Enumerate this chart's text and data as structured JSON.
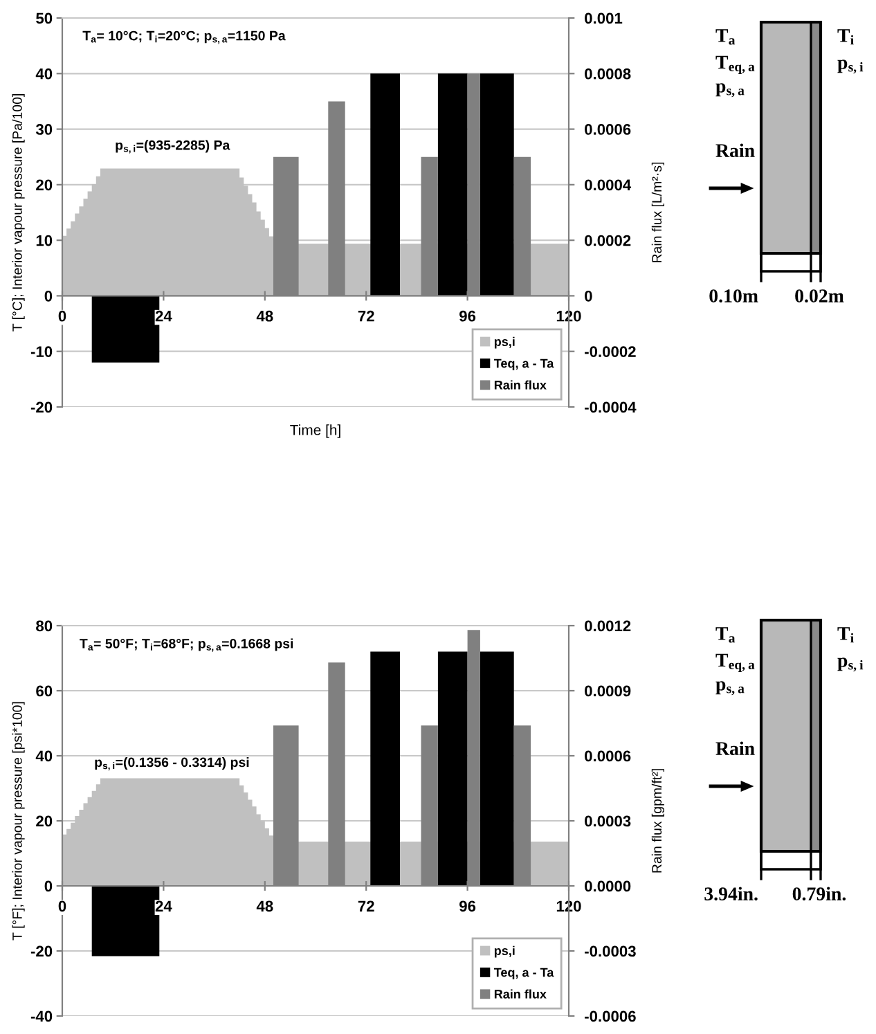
{
  "chart_data": [
    {
      "type": "area",
      "series": [
        {
          "name": "ps,i",
          "color": "#c0c0c0",
          "x": [
            0,
            1,
            1,
            2,
            2,
            3,
            3,
            4,
            4,
            5,
            5,
            6,
            6,
            7,
            7,
            8,
            8,
            9,
            9,
            42,
            42,
            43,
            43,
            44,
            44,
            45,
            45,
            46,
            46,
            47,
            47,
            48,
            48,
            49,
            49,
            50,
            50,
            120
          ],
          "values": [
            10.8,
            10.8,
            12.1,
            12.1,
            13.4,
            13.4,
            14.8,
            14.8,
            16.1,
            16.1,
            17.5,
            17.5,
            18.8,
            18.8,
            20.1,
            20.1,
            21.5,
            21.5,
            22.9,
            22.9,
            21.3,
            21.3,
            19.8,
            19.8,
            18.3,
            18.3,
            16.8,
            16.8,
            15.2,
            15.2,
            13.7,
            13.7,
            12.2,
            12.2,
            10.7,
            10.7,
            9.4,
            9.4
          ]
        },
        {
          "name": "Teq, a - Ta",
          "color": "#000000",
          "x": [
            7,
            7,
            23,
            23,
            73,
            73,
            80,
            80,
            89,
            89,
            96,
            96,
            99,
            99,
            107,
            107
          ],
          "values": [
            0,
            -12,
            -12,
            0,
            0,
            40,
            40,
            0,
            0,
            40,
            40,
            0,
            0,
            40,
            40,
            0
          ]
        },
        {
          "name": "Rain flux",
          "color": "#808080",
          "axis": "y2",
          "x": [
            50,
            50,
            56,
            56,
            63,
            63,
            67,
            67,
            85,
            85,
            89,
            89,
            96,
            96,
            99,
            99,
            107,
            107,
            111,
            111
          ],
          "values": [
            0,
            0.0005,
            0.0005,
            0,
            0,
            0.0007,
            0.0007,
            0,
            0,
            0.0005,
            0.0005,
            0,
            0,
            0.0008,
            0.0008,
            0,
            0,
            0.0005,
            0.0005,
            0
          ]
        }
      ],
      "xlim": [
        0,
        120
      ],
      "xticks": [
        0,
        24,
        48,
        72,
        96,
        120
      ],
      "ylim": [
        -20,
        50
      ],
      "yticks": [
        -20,
        -10,
        0,
        10,
        20,
        30,
        40,
        50
      ],
      "y2lim": [
        -0.0004,
        0.001
      ],
      "y2ticks": [
        -0.0004,
        -0.0002,
        0,
        0.0002,
        0.0004,
        0.0006,
        0.0008,
        0.001
      ],
      "xlabel": "Time [h]",
      "ylabel": "T [°C]; Interior vapour pressure [Pa/100]",
      "y2label": "Rain flux [L/m²·s]",
      "annotations": [
        "T$_{a}$= 10°C; T$_{i}$=20°C; p$_{s,a}$=1150 Pa",
        "p$_{s,i}$=(935-2285) Pa"
      ],
      "grid": "y",
      "legend": "bottom right"
    },
    {
      "type": "other",
      "annotations": [
        "T$_{a}$",
        "T$_{eq,a}$",
        "p$_{s,a}$",
        "Rain",
        "T$_{i}$",
        "p$_{s,i}$",
        "0.10m",
        "0.02m"
      ]
    },
    {
      "type": "area",
      "series": [
        {
          "name": "ps,i",
          "color": "#c0c0c0",
          "x": [
            0,
            1,
            1,
            2,
            2,
            3,
            3,
            4,
            4,
            5,
            5,
            6,
            6,
            7,
            7,
            8,
            8,
            9,
            9,
            42,
            42,
            43,
            43,
            44,
            44,
            45,
            45,
            46,
            46,
            47,
            47,
            48,
            48,
            49,
            49,
            50,
            50,
            120
          ],
          "values": [
            15.8,
            15.8,
            17.5,
            17.5,
            19.4,
            19.4,
            21.5,
            21.5,
            23.4,
            23.4,
            25.4,
            25.4,
            27.3,
            27.3,
            29.2,
            29.2,
            31.2,
            31.2,
            33.1,
            33.1,
            30.9,
            30.9,
            28.7,
            28.7,
            26.5,
            26.5,
            24.4,
            24.4,
            22.0,
            22.0,
            19.9,
            19.9,
            17.7,
            17.7,
            15.5,
            15.5,
            13.6,
            13.6
          ]
        },
        {
          "name": "Teq, a - Ta",
          "color": "#000000",
          "x": [
            7,
            7,
            23,
            23,
            73,
            73,
            80,
            80,
            89,
            89,
            96,
            96,
            99,
            99,
            107,
            107
          ],
          "values": [
            0,
            -21.6,
            -21.6,
            0,
            0,
            72,
            72,
            0,
            0,
            72,
            72,
            0,
            0,
            72,
            72,
            0
          ]
        },
        {
          "name": "Rain flux",
          "color": "#808080",
          "axis": "y2",
          "x": [
            50,
            50,
            56,
            56,
            63,
            63,
            67,
            67,
            85,
            85,
            89,
            89,
            96,
            96,
            99,
            99,
            107,
            107,
            111,
            111
          ],
          "values": [
            0,
            0.00074,
            0.00074,
            0,
            0,
            0.00103,
            0.00103,
            0,
            0,
            0.00074,
            0.00074,
            0,
            0,
            0.00118,
            0.00118,
            0,
            0,
            0.00074,
            0.00074,
            0
          ]
        }
      ],
      "xlim": [
        0,
        120
      ],
      "xticks": [
        0,
        24,
        48,
        72,
        96,
        120
      ],
      "ylim": [
        -40,
        80
      ],
      "yticks": [
        -40,
        -20,
        0,
        20,
        40,
        60,
        80
      ],
      "y2lim": [
        -0.0006,
        0.0012
      ],
      "y2ticks": [
        -0.0006,
        -0.0003,
        {
          "value": 0,
          "label": "0.0000"
        },
        0.0003,
        0.0006,
        0.0009,
        0.0012
      ],
      "ylabel": "T [°F]; Interior vapour pressure [psi*100]",
      "y2label": "Rain flux [gpm/ft²]",
      "annotations": [
        "T$_{a}$= 50°F; T$_{i}$=68°F; p$_{s,a}$=0.1668 psi",
        "p$_{s,i}$=(0.1356 - 0.3314) psi"
      ],
      "grid": "y",
      "legend": "bottom right"
    },
    {
      "type": "other",
      "annotations": [
        "T$_{a}$",
        "T$_{eq,a}$",
        "p$_{s,a}$",
        "Rain",
        "T$_{i}$",
        "p$_{s,i}$",
        "3.94in.",
        "0.79in."
      ]
    }
  ]
}
